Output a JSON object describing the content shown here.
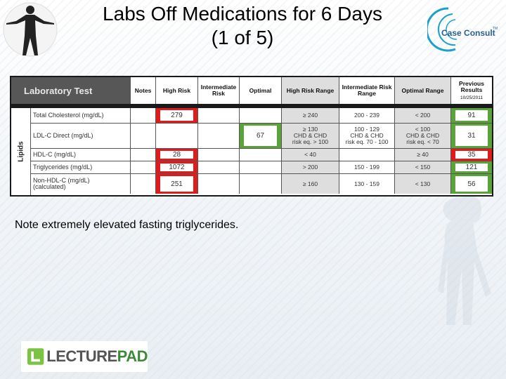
{
  "slide": {
    "title_line1": "Labs Off Medications for 6 Days",
    "title_line2": "(1 of 5)",
    "note": "Note extremely elevated fasting triglycerides.",
    "brand": "Case Consult",
    "brand_tm": "TM",
    "footer_logo_left": "LECTURE",
    "footer_logo_right": "PAD"
  },
  "table": {
    "headers": {
      "lab_test": "Laboratory Test",
      "notes": "Notes",
      "high_risk": "High Risk",
      "intermediate_risk": "Intermediate Risk",
      "optimal": "Optimal",
      "high_risk_range": "High Risk Range",
      "intermediate_risk_range": "Intermediate Risk Range",
      "optimal_range": "Optimal Range",
      "previous_results": "Previous Results",
      "previous_date": "10/25/2011"
    },
    "group_label": "Lipids",
    "rows": [
      {
        "test": "Total Cholesterol (mg/dL)",
        "high": "279",
        "intermediate": "",
        "optimal": "",
        "high_range": "≥ 240",
        "int_range": "200 - 239",
        "opt_range": "< 200",
        "previous": "91",
        "prev_color": "green"
      },
      {
        "test": "LDL-C Direct (mg/dL)",
        "high": "",
        "intermediate": "",
        "optimal": "67",
        "high_range": "≥ 130\nCHD & CHD\nrisk eq. > 100",
        "int_range": "100 - 129\nCHD & CHD\nrisk eq. 70 - 100",
        "opt_range": "< 100\nCHD & CHD\nrisk eq. < 70",
        "previous": "31",
        "prev_color": "green"
      },
      {
        "test": "HDL-C (mg/dL)",
        "high": "28",
        "intermediate": "",
        "optimal": "",
        "high_range": "< 40",
        "int_range": "",
        "opt_range": "≥ 40",
        "previous": "35",
        "prev_color": "red"
      },
      {
        "test": "Triglycerides (mg/dL)",
        "high": "1072",
        "intermediate": "",
        "optimal": "",
        "high_range": "> 200",
        "int_range": "150 - 199",
        "opt_range": "< 150",
        "previous": "121",
        "prev_color": "green"
      },
      {
        "test": "Non-HDL-C (mg/dL)\n(calculated)",
        "high": "251",
        "intermediate": "",
        "optimal": "",
        "high_range": "≥ 160",
        "int_range": "130 - 159",
        "opt_range": "< 130",
        "previous": "56",
        "prev_color": "green"
      }
    ]
  },
  "colors": {
    "high": "#e01b1b",
    "optimal": "#5aa33b",
    "header_dark": "#575757"
  }
}
